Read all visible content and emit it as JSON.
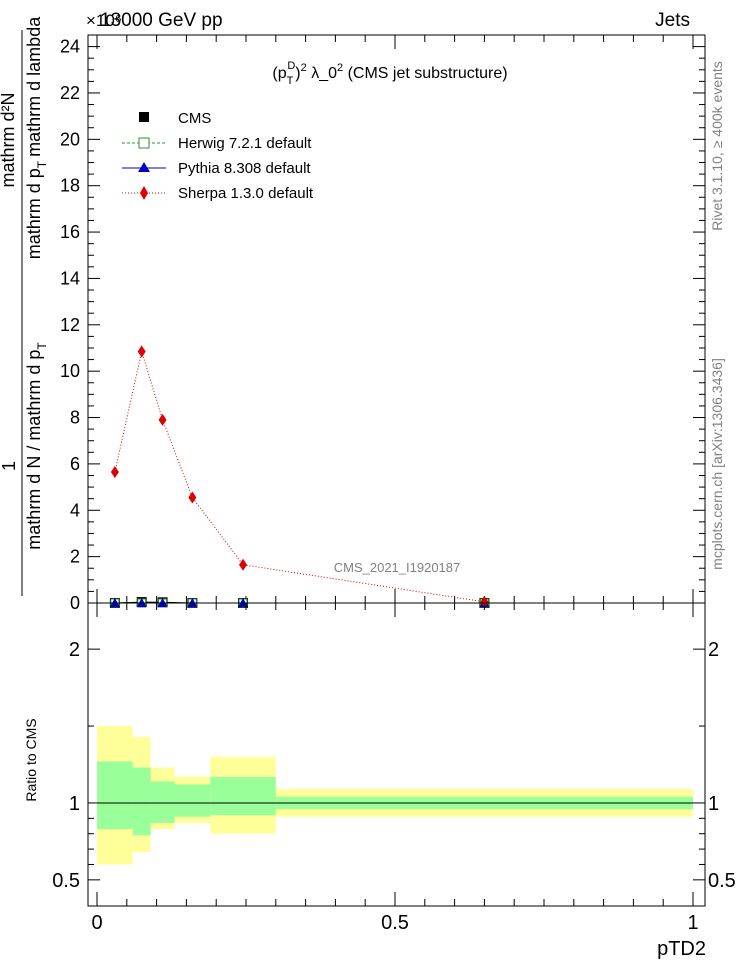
{
  "header": {
    "energy_label": "13000 GeV pp",
    "process_label": "Jets",
    "exponent_label": "×10⁶"
  },
  "side_labels": {
    "rivet": "Rivet 3.1.10, ≥ 400k events",
    "mcplots": "mcplots.cern.ch [arXiv:1306.3436]"
  },
  "watermark": "CMS_2021_I1920187",
  "chart_data": [
    {
      "type": "line",
      "title_parts": {
        "pre": "(p",
        "sub": "T",
        "sup": "D",
        "exp": "2",
        "mid": " λ_0",
        "post": " (CMS jet substructure)"
      },
      "ylabel_numerator": "mathrm d²N",
      "ylabel_den_a": "mathrm d p",
      "ylabel_den_sub": "T",
      "ylabel_den_b": "mathrm d lambda",
      "ylabel_one": "1",
      "ylabel_lower": "mathrm d N / mathrm d p",
      "ylabel_lower_sub": "T",
      "y_multiplier": "×10⁶",
      "xlim": [
        0,
        1
      ],
      "ylim": [
        0,
        24.5
      ],
      "y_ticks": [
        0,
        2,
        4,
        6,
        8,
        10,
        12,
        14,
        16,
        18,
        20,
        22,
        24
      ],
      "series": [
        {
          "name": "CMS",
          "color": "#000000",
          "marker": "square",
          "x": [
            0.03,
            0.075,
            0.11,
            0.16,
            0.245,
            0.65
          ],
          "y": [
            0.0,
            0.04,
            0.03,
            0.0,
            0.0,
            0.0
          ]
        },
        {
          "name": "Herwig 7.2.1 default",
          "color": "#2f8f2f",
          "marker": "open-square",
          "x": [
            0.03,
            0.075,
            0.11,
            0.16,
            0.245,
            0.65
          ],
          "y": [
            0.0,
            0.0,
            0.0,
            0.0,
            0.0,
            0.0
          ]
        },
        {
          "name": "Pythia 8.308 default",
          "color": "#0000cc",
          "marker": "triangle",
          "x": [
            0.03,
            0.075,
            0.11,
            0.16,
            0.245,
            0.65
          ],
          "y": [
            0.0,
            0.0,
            0.0,
            0.0,
            0.0,
            0.0
          ]
        },
        {
          "name": "Sherpa 1.3.0 default",
          "color": "#dd0000",
          "marker": "diamond",
          "x": [
            0.03,
            0.075,
            0.11,
            0.16,
            0.245,
            0.65
          ],
          "y": [
            5.65,
            10.85,
            7.9,
            4.55,
            1.65,
            0.05
          ],
          "yerr": [
            0.12,
            0.25,
            0.15,
            0.12,
            0.08,
            0.02
          ]
        }
      ]
    },
    {
      "type": "area",
      "ylabel": "Ratio to CMS",
      "xlabel": "pTD2",
      "xlim": [
        0,
        1
      ],
      "ylim": [
        0.33,
        2.3
      ],
      "y_ticks": [
        0.5,
        1,
        2
      ],
      "x_ticks": [
        0,
        0.5,
        1
      ],
      "x_tick_labels": [
        "0",
        "0.5",
        "1"
      ],
      "y_tick_labels": [
        "0.5",
        "1",
        "2"
      ],
      "bin_edges": [
        0,
        0.06,
        0.09,
        0.13,
        0.19,
        0.3,
        1.0
      ],
      "band_inner_color": "#99ff99",
      "band_outer_color": "#ffff99",
      "inner_band": [
        [
          0.83,
          1.27
        ],
        [
          0.79,
          1.23
        ],
        [
          0.87,
          1.14
        ],
        [
          0.91,
          1.12
        ],
        [
          0.92,
          1.17
        ],
        [
          0.96,
          1.04
        ]
      ],
      "outer_band": [
        [
          0.6,
          1.5
        ],
        [
          0.68,
          1.43
        ],
        [
          0.83,
          1.23
        ],
        [
          0.87,
          1.17
        ],
        [
          0.8,
          1.3
        ],
        [
          0.91,
          1.09
        ]
      ]
    }
  ]
}
